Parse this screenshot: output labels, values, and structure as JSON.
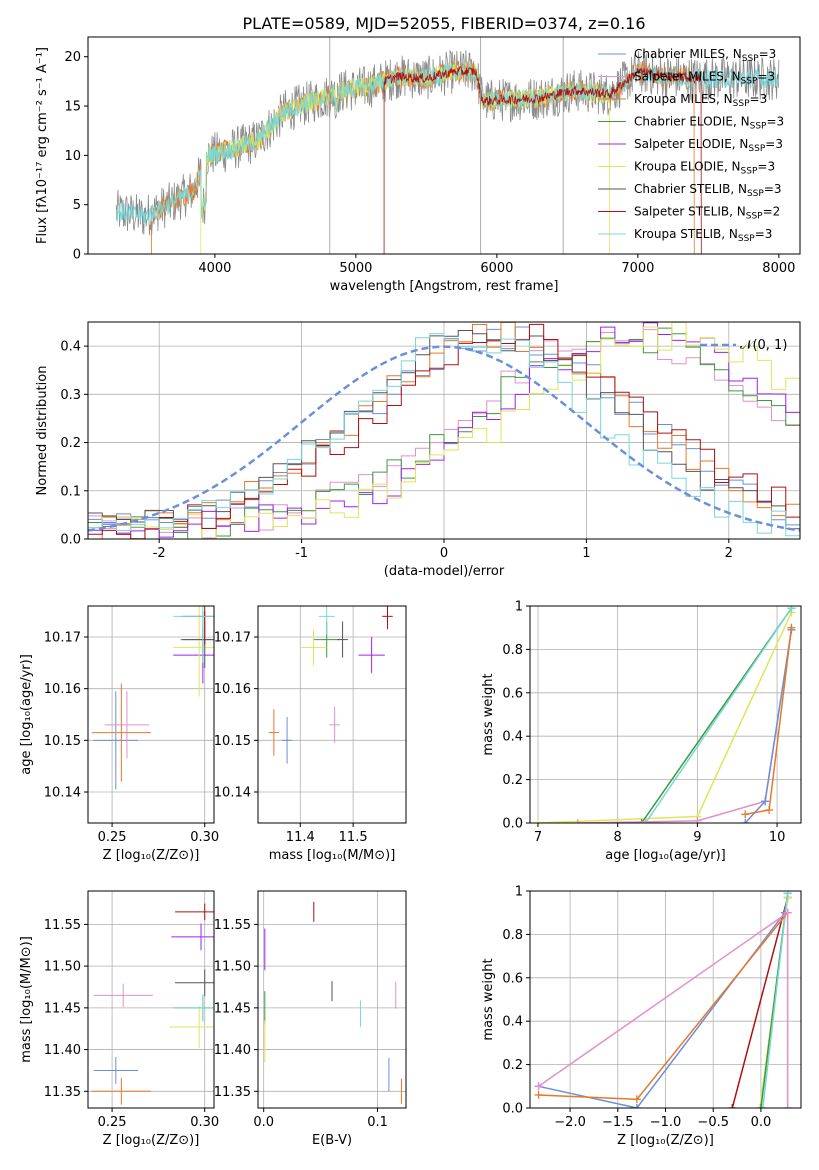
{
  "figure": {
    "title": "PLATE=0589, MJD=52055, FIBERID=0374, z=0.16"
  },
  "colors": {
    "chabrier_miles": "#6a8fdd",
    "salpeter_miles": "#e58fc9",
    "kroupa_miles": "#e8792a",
    "chabrier_elodie": "#3c9a3c",
    "salpeter_elodie": "#a020f0",
    "kroupa_elodie": "#dfe65a",
    "chabrier_stelib": "#555555",
    "salpeter_stelib": "#b01010",
    "kroupa_stelib": "#78d8d8",
    "gaussian": "#6a8fdd",
    "grid": "#b0b0b0",
    "spectrum_miles": "#e8792a",
    "spectrum_stelib": "#8a8a8a"
  },
  "chart_data": [
    {
      "id": "spectrum",
      "type": "line",
      "xlabel": "wavelength [Angstrom, rest frame]",
      "ylabel": "Flux [fλ10⁻¹⁷ erg cm⁻² s⁻¹ A⁻¹]",
      "xlim": [
        3100,
        8150
      ],
      "ylim": [
        0,
        22
      ],
      "grid": false,
      "legend_position": "top-right",
      "xticks": [
        4000,
        5000,
        6000,
        7000,
        8000
      ],
      "yticks": [
        0,
        5,
        10,
        15,
        20
      ],
      "legend": [
        {
          "key": "chabrier_miles",
          "label": "Chabrier MILES, N",
          "sub": "SSP",
          "tail": "=3"
        },
        {
          "key": "salpeter_miles",
          "label": "Salpeter MILES, N",
          "sub": "SSP",
          "tail": "=3"
        },
        {
          "key": "kroupa_miles",
          "label": "Kroupa MILES, N",
          "sub": "SSP",
          "tail": "=3"
        },
        {
          "key": "chabrier_elodie",
          "label": "Chabrier ELODIE, N",
          "sub": "SSP",
          "tail": "=3"
        },
        {
          "key": "salpeter_elodie",
          "label": "Salpeter ELODIE, N",
          "sub": "SSP",
          "tail": "=3"
        },
        {
          "key": "kroupa_elodie",
          "label": "Kroupa ELODIE, N",
          "sub": "SSP",
          "tail": "=3"
        },
        {
          "key": "chabrier_stelib",
          "label": "Chabrier STELIB, N",
          "sub": "SSP",
          "tail": "=3"
        },
        {
          "key": "salpeter_stelib",
          "label": "Salpeter STELIB, N",
          "sub": "SSP",
          "tail": "=2"
        },
        {
          "key": "kroupa_stelib",
          "label": "Kroupa STELIB, N",
          "sub": "SSP",
          "tail": "=3"
        }
      ],
      "continuum_anchors": [
        [
          3300,
          4.3
        ],
        [
          3500,
          3.8
        ],
        [
          3700,
          5.2
        ],
        [
          3850,
          6.5
        ],
        [
          3950,
          10.0
        ],
        [
          4100,
          10.5
        ],
        [
          4300,
          11.5
        ],
        [
          4500,
          14.5
        ],
        [
          4700,
          15.5
        ],
        [
          4900,
          16.5
        ],
        [
          5100,
          17.0
        ],
        [
          5300,
          18.0
        ],
        [
          5500,
          17.8
        ],
        [
          5700,
          18.5
        ],
        [
          5850,
          18.5
        ],
        [
          5900,
          15.5
        ],
        [
          6000,
          15.6
        ],
        [
          6300,
          15.8
        ],
        [
          6550,
          16.6
        ],
        [
          6800,
          16.2
        ],
        [
          7000,
          18.5
        ],
        [
          7200,
          18.0
        ],
        [
          7400,
          17.8
        ]
      ],
      "segments": {
        "miles": [
          3550,
          7400
        ],
        "elodie": [
          3900,
          6800
        ],
        "stelib": [
          3300,
          8000
        ]
      }
    },
    {
      "id": "residuals",
      "type": "line",
      "xlabel": "(data-model)/error",
      "ylabel": "Normed distribution",
      "xlim": [
        -2.5,
        2.5
      ],
      "ylim": [
        0,
        0.45
      ],
      "grid": true,
      "legend_position": "top-right",
      "legend_label": "𝒩(0, 1)",
      "xticks": [
        -2,
        -1,
        0,
        1,
        2
      ],
      "yticks": [
        0.0,
        0.1,
        0.2,
        0.3,
        0.4
      ],
      "series": [
        {
          "key": "chabrier_miles",
          "peak": 0.4,
          "width": 0.95,
          "floor": 0.02
        },
        {
          "key": "salpeter_miles",
          "peak": 1.2,
          "width": 1.05,
          "floor": 0.02
        },
        {
          "key": "kroupa_miles",
          "peak": 0.4,
          "width": 0.95,
          "floor": 0.02
        },
        {
          "key": "chabrier_elodie",
          "peak": 1.3,
          "width": 1.05,
          "floor": 0.02
        },
        {
          "key": "salpeter_elodie",
          "peak": 1.4,
          "width": 1.0,
          "floor": 0.03
        },
        {
          "key": "kroupa_elodie",
          "peak": 1.6,
          "width": 1.1,
          "floor": 0.02
        },
        {
          "key": "chabrier_stelib",
          "peak": 0.3,
          "width": 0.95,
          "floor": 0.02
        },
        {
          "key": "salpeter_stelib",
          "peak": 0.5,
          "width": 0.95,
          "floor": 0.02
        },
        {
          "key": "kroupa_stelib",
          "peak": 0.2,
          "width": 0.85,
          "floor": 0.02
        }
      ]
    },
    {
      "id": "age_vs_z",
      "type": "scatter",
      "xlabel": "Z [log₁₀(Z/Z⊙)]",
      "ylabel": "age  [log₁₀(age/yr)]",
      "xlim": [
        0.237,
        0.305
      ],
      "ylim": [
        10.134,
        10.176
      ],
      "grid": true,
      "xticks": [
        0.25,
        0.3
      ],
      "xticklabels": [
        "0.25",
        "0.30"
      ],
      "yticks": [
        10.14,
        10.15,
        10.16,
        10.17
      ],
      "points": [
        {
          "key": "chabrier_miles",
          "x": 0.252,
          "y": 10.15,
          "xerr": 0.012,
          "yerr": 0.0095
        },
        {
          "key": "salpeter_miles",
          "x": 0.258,
          "y": 10.153,
          "xerr": 0.012,
          "yerr": 0.0065
        },
        {
          "key": "kroupa_miles",
          "x": 0.255,
          "y": 10.1515,
          "xerr": 0.016,
          "yerr": 0.0095
        },
        {
          "key": "chabrier_elodie",
          "x": 0.299,
          "y": 10.1695,
          "xerr": 0.012,
          "yerr": 0.0055
        },
        {
          "key": "salpeter_elodie",
          "x": 0.299,
          "y": 10.1665,
          "xerr": 0.016,
          "yerr": 0.0055
        },
        {
          "key": "kroupa_elodie",
          "x": 0.297,
          "y": 10.168,
          "xerr": 0.014,
          "yerr": 0.0095
        },
        {
          "key": "chabrier_stelib",
          "x": 0.3,
          "y": 10.1695,
          "xerr": 0.012,
          "yerr": 0.0055
        },
        {
          "key": "salpeter_stelib",
          "x": 0.3,
          "y": 10.174,
          "xerr": 0.012,
          "yerr": 0.0055
        },
        {
          "key": "kroupa_stelib",
          "x": 0.299,
          "y": 10.174,
          "xerr": 0.016,
          "yerr": 0.009
        }
      ]
    },
    {
      "id": "age_vs_mass",
      "type": "scatter",
      "xlabel": "mass [log₁₀(M/M⊙)]",
      "ylabel": "",
      "xlim": [
        11.32,
        11.6
      ],
      "ylim": [
        10.134,
        10.176
      ],
      "grid": true,
      "xticks": [
        11.4,
        11.5
      ],
      "xticklabels": [
        "11.4",
        "11.5"
      ],
      "yticks": [
        10.14,
        10.15,
        10.16,
        10.17
      ],
      "points": [
        {
          "key": "chabrier_miles",
          "x": 11.375,
          "y": 10.15,
          "xerr": 0.01,
          "yerr": 0.0045
        },
        {
          "key": "salpeter_miles",
          "x": 11.465,
          "y": 10.153,
          "xerr": 0.01,
          "yerr": 0.0035
        },
        {
          "key": "kroupa_miles",
          "x": 11.35,
          "y": 10.1515,
          "xerr": 0.01,
          "yerr": 0.0045
        },
        {
          "key": "chabrier_elodie",
          "x": 11.45,
          "y": 10.1695,
          "xerr": 0.025,
          "yerr": 0.0035
        },
        {
          "key": "salpeter_elodie",
          "x": 11.535,
          "y": 10.1665,
          "xerr": 0.025,
          "yerr": 0.0035
        },
        {
          "key": "kroupa_elodie",
          "x": 11.425,
          "y": 10.168,
          "xerr": 0.025,
          "yerr": 0.0035
        },
        {
          "key": "chabrier_stelib",
          "x": 11.48,
          "y": 10.1695,
          "xerr": 0.01,
          "yerr": 0.0035
        },
        {
          "key": "salpeter_stelib",
          "x": 11.565,
          "y": 10.174,
          "xerr": 0.01,
          "yerr": 0.0025
        },
        {
          "key": "kroupa_stelib",
          "x": 11.45,
          "y": 10.174,
          "xerr": 0.015,
          "yerr": 0.0035
        }
      ]
    },
    {
      "id": "mass_weight_age",
      "type": "line",
      "xlabel": "age  [log₁₀(age/yr)]",
      "ylabel": "mass weight",
      "xlim": [
        6.9,
        10.3
      ],
      "ylim": [
        0,
        1
      ],
      "grid": true,
      "xticks": [
        7,
        8,
        9,
        10
      ],
      "yticks": [
        0.0,
        0.2,
        0.4,
        0.6,
        0.8,
        1.0
      ],
      "series": [
        {
          "key": "kroupa_elodie",
          "points": [
            [
              7.0,
              0.0
            ],
            [
              9.0,
              0.03
            ],
            [
              10.18,
              0.97
            ]
          ]
        },
        {
          "key": "chabrier_elodie",
          "points": [
            [
              8.3,
              0.0
            ],
            [
              10.18,
              0.99
            ]
          ]
        },
        {
          "key": "kroupa_stelib",
          "points": [
            [
              8.35,
              0.0
            ],
            [
              10.18,
              0.99
            ]
          ]
        },
        {
          "key": "salpeter_miles",
          "points": [
            [
              7.5,
              0.0
            ],
            [
              9.0,
              0.01
            ],
            [
              9.85,
              0.1
            ],
            [
              10.18,
              0.89
            ]
          ]
        },
        {
          "key": "chabrier_miles",
          "points": [
            [
              9.6,
              0.0
            ],
            [
              9.85,
              0.1
            ],
            [
              10.18,
              0.89
            ]
          ]
        },
        {
          "key": "kroupa_miles",
          "points": [
            [
              9.6,
              0.04
            ],
            [
              9.9,
              0.06
            ],
            [
              10.18,
              0.9
            ]
          ]
        }
      ]
    },
    {
      "id": "mass_vs_z",
      "type": "scatter",
      "xlabel": "Z [log₁₀(Z/Z⊙)]",
      "ylabel": "mass [log₁₀(M/M⊙)]",
      "xlim": [
        0.237,
        0.305
      ],
      "ylim": [
        11.33,
        11.59
      ],
      "grid": true,
      "xticks": [
        0.25,
        0.3
      ],
      "xticklabels": [
        "0.25",
        "0.30"
      ],
      "yticks": [
        11.35,
        11.4,
        11.45,
        11.5,
        11.55
      ],
      "yticklabels": [
        "11.35",
        "11.40",
        "11.45",
        "11.50",
        "11.55"
      ],
      "points": [
        {
          "key": "chabrier_miles",
          "x": 0.252,
          "y": 11.375,
          "xerr": 0.012,
          "yerr": 0.016
        },
        {
          "key": "salpeter_miles",
          "x": 0.256,
          "y": 11.465,
          "xerr": 0.016,
          "yerr": 0.014
        },
        {
          "key": "kroupa_miles",
          "x": 0.255,
          "y": 11.35,
          "xerr": 0.016,
          "yerr": 0.016
        },
        {
          "key": "chabrier_elodie",
          "x": 0.299,
          "y": 11.45,
          "xerr": 0.016,
          "yerr": 0.016
        },
        {
          "key": "salpeter_elodie",
          "x": 0.298,
          "y": 11.535,
          "xerr": 0.016,
          "yerr": 0.016
        },
        {
          "key": "kroupa_elodie",
          "x": 0.297,
          "y": 11.427,
          "xerr": 0.016,
          "yerr": 0.025
        },
        {
          "key": "chabrier_stelib",
          "x": 0.3,
          "y": 11.48,
          "xerr": 0.016,
          "yerr": 0.016
        },
        {
          "key": "salpeter_stelib",
          "x": 0.3,
          "y": 11.565,
          "xerr": 0.016,
          "yerr": 0.01
        },
        {
          "key": "kroupa_stelib",
          "x": 0.299,
          "y": 11.45,
          "xerr": 0.016,
          "yerr": 0.016
        }
      ]
    },
    {
      "id": "mass_vs_ebv",
      "type": "scatter",
      "xlabel": "E(B-V)",
      "ylabel": "",
      "xlim": [
        -0.005,
        0.125
      ],
      "ylim": [
        11.33,
        11.59
      ],
      "grid": true,
      "xticks": [
        0.0,
        0.1
      ],
      "xticklabels": [
        "0.0",
        "0.1"
      ],
      "yticks": [
        11.35,
        11.4,
        11.45,
        11.5,
        11.55
      ],
      "yticklabels": [
        "11.35",
        "11.40",
        "11.45",
        "11.50",
        "11.55"
      ],
      "points": [
        {
          "key": "chabrier_miles",
          "x": 0.11,
          "y": 11.37,
          "xerr": 0.0,
          "yerr": 0.02
        },
        {
          "key": "salpeter_miles",
          "x": 0.116,
          "y": 11.465,
          "xerr": 0.0,
          "yerr": 0.016
        },
        {
          "key": "kroupa_miles",
          "x": 0.121,
          "y": 11.35,
          "xerr": 0.0,
          "yerr": 0.015
        },
        {
          "key": "chabrier_elodie",
          "x": 0.001,
          "y": 11.45,
          "xerr": 0.0,
          "yerr": 0.02
        },
        {
          "key": "salpeter_elodie",
          "x": 0.001,
          "y": 11.52,
          "xerr": 0.0,
          "yerr": 0.025
        },
        {
          "key": "kroupa_elodie",
          "x": 0.001,
          "y": 11.41,
          "xerr": 0.0,
          "yerr": 0.025
        },
        {
          "key": "chabrier_stelib",
          "x": 0.06,
          "y": 11.47,
          "xerr": 0.0,
          "yerr": 0.012
        },
        {
          "key": "salpeter_stelib",
          "x": 0.044,
          "y": 11.565,
          "xerr": 0.0,
          "yerr": 0.012
        },
        {
          "key": "kroupa_stelib",
          "x": 0.085,
          "y": 11.443,
          "xerr": 0.0,
          "yerr": 0.016
        }
      ]
    },
    {
      "id": "mass_weight_z",
      "type": "line",
      "xlabel": "Z [log₁₀(Z/Z⊙)]",
      "ylabel": "mass weight",
      "xlim": [
        -2.42,
        0.42
      ],
      "ylim": [
        0,
        1
      ],
      "grid": true,
      "xticks": [
        -2.0,
        -1.5,
        -1.0,
        -0.5,
        0.0
      ],
      "xticklabels": [
        "−2.0",
        "−1.5",
        "−1.0",
        "−0.5",
        "0.0"
      ],
      "yticks": [
        0.0,
        0.2,
        0.4,
        0.6,
        0.8,
        1.0
      ],
      "series": [
        {
          "key": "salpeter_stelib",
          "points": [
            [
              -0.3,
              0.0
            ],
            [
              0.28,
              0.97
            ]
          ]
        },
        {
          "key": "kroupa_elodie",
          "points": [
            [
              -0.01,
              0.0
            ],
            [
              0.28,
              0.97
            ]
          ]
        },
        {
          "key": "chabrier_elodie",
          "points": [
            [
              0.0,
              0.0
            ],
            [
              0.28,
              0.99
            ]
          ]
        },
        {
          "key": "kroupa_stelib",
          "points": [
            [
              0.02,
              0.0
            ],
            [
              0.28,
              0.99
            ]
          ]
        },
        {
          "key": "chabrier_miles",
          "points": [
            [
              -2.33,
              0.1
            ],
            [
              -1.3,
              0.0
            ],
            [
              0.25,
              0.9
            ]
          ]
        },
        {
          "key": "kroupa_miles",
          "points": [
            [
              -2.33,
              0.06
            ],
            [
              -1.3,
              0.04
            ],
            [
              0.28,
              0.9
            ]
          ]
        },
        {
          "key": "salpeter_miles",
          "points": [
            [
              -2.33,
              0.1
            ],
            [
              0.28,
              0.9
            ],
            [
              0.28,
              0.0
            ]
          ]
        }
      ]
    }
  ]
}
